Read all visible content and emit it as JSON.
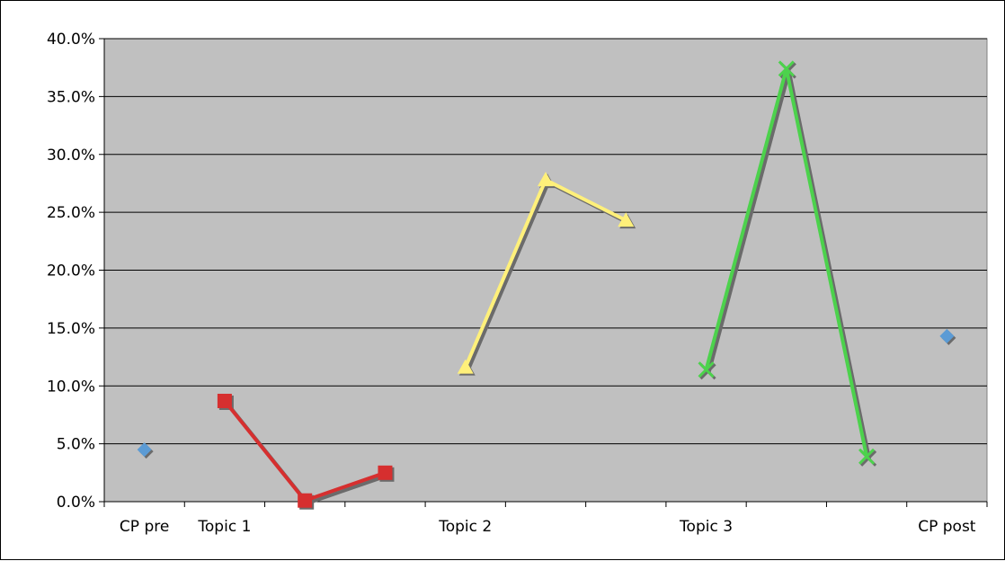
{
  "chart_data": {
    "type": "line",
    "title": "",
    "xlabel": "",
    "ylabel": "",
    "ylim": [
      0,
      40
    ],
    "y_tick_labels": [
      "0.0%",
      "5.0%",
      "10.0%",
      "15.0%",
      "20.0%",
      "25.0%",
      "30.0%",
      "35.0%",
      "40.0%"
    ],
    "x_positions": 10,
    "category_labels": [
      {
        "slot": 0,
        "label": "CP pre"
      },
      {
        "slot": 1,
        "label": "Topic 1"
      },
      {
        "slot": 4,
        "label": "Topic 2"
      },
      {
        "slot": 7,
        "label": "Topic 3"
      },
      {
        "slot": 10,
        "label": "CP post"
      }
    ],
    "plot_background": "#c0c0c0",
    "grid": true,
    "legend": "none",
    "series": [
      {
        "marker": "diamond",
        "color": "#5b9bd5",
        "points": [
          {
            "slot": 0,
            "y": 4.5
          }
        ]
      },
      {
        "marker": "square",
        "color": "#d62f2f",
        "points": [
          {
            "slot": 1,
            "y": 8.7
          },
          {
            "slot": 2,
            "y": 0.1
          },
          {
            "slot": 3,
            "y": 2.5
          }
        ]
      },
      {
        "marker": "triangle",
        "color": "#fff07a",
        "points": [
          {
            "slot": 4,
            "y": 11.6
          },
          {
            "slot": 5,
            "y": 27.8
          },
          {
            "slot": 6,
            "y": 24.3
          }
        ]
      },
      {
        "marker": "x",
        "color": "#4cd24c",
        "points": [
          {
            "slot": 7,
            "y": 11.4
          },
          {
            "slot": 8,
            "y": 37.4
          },
          {
            "slot": 9,
            "y": 3.9
          }
        ]
      },
      {
        "marker": "diamond",
        "color": "#5b9bd5",
        "points": [
          {
            "slot": 10,
            "y": 14.3
          }
        ]
      }
    ]
  }
}
